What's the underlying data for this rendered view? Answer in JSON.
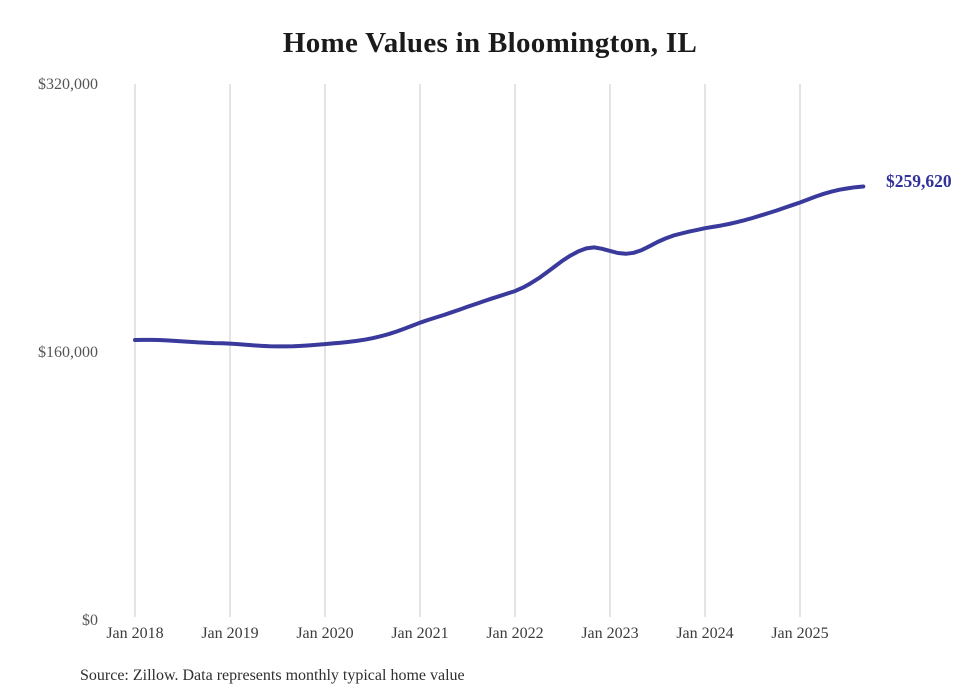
{
  "chart": {
    "title": "Home Values in Bloomington, IL",
    "end_label": "$259,620",
    "source": "Source: Zillow. Data represents monthly typical home value"
  },
  "chart_data": {
    "type": "line",
    "title": "Home Values in Bloomington, IL",
    "series_name": "Monthly typical home value",
    "x_tick_labels": [
      "Jan 2018",
      "Jan 2019",
      "Jan 2020",
      "Jan 2021",
      "Jan 2022",
      "Jan 2023",
      "Jan 2024",
      "Jan 2025"
    ],
    "y_tick_labels": [
      "$320,000",
      "$160,000",
      "$0"
    ],
    "ylim": [
      0,
      320000
    ],
    "grid": "vertical-only",
    "legend": "none",
    "line_color": "#3a3a9d",
    "label_color": "#32329b",
    "gridline_color": "#c9c9c9",
    "latest": {
      "month": "2025-09",
      "value": 259620,
      "label": "$259,620"
    },
    "months": [
      "2018-01",
      "2018-02",
      "2018-03",
      "2018-04",
      "2018-05",
      "2018-06",
      "2018-07",
      "2018-08",
      "2018-09",
      "2018-10",
      "2018-11",
      "2018-12",
      "2019-01",
      "2019-02",
      "2019-03",
      "2019-04",
      "2019-05",
      "2019-06",
      "2019-07",
      "2019-08",
      "2019-09",
      "2019-10",
      "2019-11",
      "2019-12",
      "2020-01",
      "2020-02",
      "2020-03",
      "2020-04",
      "2020-05",
      "2020-06",
      "2020-07",
      "2020-08",
      "2020-09",
      "2020-10",
      "2020-11",
      "2020-12",
      "2021-01",
      "2021-02",
      "2021-03",
      "2021-04",
      "2021-05",
      "2021-06",
      "2021-07",
      "2021-08",
      "2021-09",
      "2021-10",
      "2021-11",
      "2021-12",
      "2022-01",
      "2022-02",
      "2022-03",
      "2022-04",
      "2022-05",
      "2022-06",
      "2022-07",
      "2022-08",
      "2022-09",
      "2022-10",
      "2022-11",
      "2022-12",
      "2023-01",
      "2023-02",
      "2023-03",
      "2023-04",
      "2023-05",
      "2023-06",
      "2023-07",
      "2023-08",
      "2023-09",
      "2023-10",
      "2023-11",
      "2023-12",
      "2024-01",
      "2024-02",
      "2024-03",
      "2024-04",
      "2024-05",
      "2024-06",
      "2024-07",
      "2024-08",
      "2024-09",
      "2024-10",
      "2024-11",
      "2024-12",
      "2025-01",
      "2025-02",
      "2025-03",
      "2025-04",
      "2025-05",
      "2025-06",
      "2025-07",
      "2025-08",
      "2025-09"
    ],
    "values": [
      168300,
      168400,
      168400,
      168300,
      168100,
      167800,
      167500,
      167200,
      166900,
      166700,
      166500,
      166400,
      166200,
      165900,
      165500,
      165100,
      164800,
      164600,
      164500,
      164500,
      164600,
      164800,
      165100,
      165500,
      165900,
      166300,
      166700,
      167200,
      167800,
      168500,
      169400,
      170500,
      171800,
      173300,
      175000,
      176800,
      178600,
      180200,
      181700,
      183200,
      184800,
      186400,
      188100,
      189700,
      191300,
      192900,
      194400,
      195900,
      197400,
      199500,
      202100,
      205100,
      208500,
      212000,
      215500,
      218500,
      221000,
      222800,
      223400,
      222600,
      221300,
      220100,
      219600,
      220200,
      221800,
      224100,
      226600,
      228700,
      230400,
      231700,
      232800,
      233800,
      234800,
      235600,
      236400,
      237300,
      238400,
      239600,
      240900,
      242300,
      243800,
      245300,
      246900,
      248500,
      250100,
      251900,
      253700,
      255300,
      256600,
      257700,
      258500,
      259200,
      259620
    ]
  }
}
